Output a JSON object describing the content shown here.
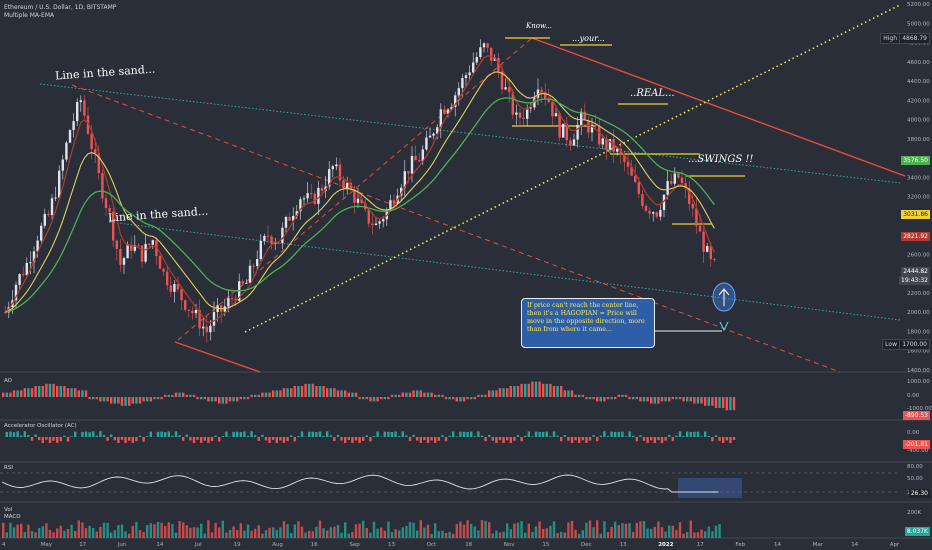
{
  "header": {
    "title": "Ethereum / U.S. Dollar, 1D, BITSTAMP",
    "indicator": "Multiple MA-EMA"
  },
  "annotations": {
    "line_sand_1": "Line in the sand...",
    "line_sand_2": "Line in the sand...",
    "know": "Know...",
    "your": "...your...",
    "real": "..REAL...",
    "swings": "...SWINGS !!",
    "callout": "If price can't reach the center line, then it's a HAGOPIAN = Price will move in the opposite direction, more than from where it came..."
  },
  "price_labels": {
    "high_tag": "High",
    "high": "4868.79",
    "low_tag": "Low",
    "low": "1700.00",
    "ma1": "3576.50",
    "ma2": "3031.86",
    "ma3": "2821.92",
    "last": "2444.82",
    "countdown": "19:43:32",
    "ao_val": "-890.53",
    "ac_val": "-201.81",
    "rsi_val": "26.30",
    "vol_val": "8.037K"
  },
  "panels": {
    "ao": "AO",
    "ac": "Accelerator Oscillator (AC)",
    "rsi": "RSI",
    "vol": "Vol",
    "macd": "MACD"
  },
  "colors": {
    "bg": "#2a2e39",
    "up": "#26a69a",
    "down": "#ef5350",
    "candle_up": "#e0e3eb",
    "ema_fast": "#b33a2f",
    "ema_mid": "#e0d05a",
    "ema_slow": "#4caf50",
    "trend_red": "#e84a3a",
    "dotted_yellow": "#e6e84a",
    "teal_dotted": "#2fb7b0",
    "level_yellow": "#f2d233"
  },
  "chart_data": {
    "type": "candlestick",
    "y_axis": {
      "min": 1400,
      "max": 5200,
      "ticks": [
        1400,
        1600,
        1800,
        2000,
        2200,
        2400,
        2600,
        2800,
        3000,
        3200,
        3400,
        3600,
        3800,
        4000,
        4200,
        4400,
        4600,
        4800,
        5000,
        5200
      ]
    },
    "x_axis": {
      "ticks": [
        "4",
        "May",
        "17",
        "Jun",
        "14",
        "Jul",
        "19",
        "Aug",
        "16",
        "Sep",
        "13",
        "Oct",
        "18",
        "Nov",
        "15",
        "Dec",
        "13",
        "2022",
        "17",
        "Feb",
        "14",
        "Mar",
        "14",
        "Apr"
      ]
    },
    "close_series": [
      [
        0,
        2000
      ],
      [
        3,
        2300
      ],
      [
        6,
        2500
      ],
      [
        9,
        2800
      ],
      [
        12,
        3000
      ],
      [
        15,
        3400
      ],
      [
        18,
        3900
      ],
      [
        21,
        4200
      ],
      [
        23,
        3900
      ],
      [
        26,
        3400
      ],
      [
        29,
        3000
      ],
      [
        32,
        2500
      ],
      [
        35,
        2700
      ],
      [
        38,
        2600
      ],
      [
        41,
        2750
      ],
      [
        44,
        2400
      ],
      [
        47,
        2250
      ],
      [
        50,
        2100
      ],
      [
        53,
        1950
      ],
      [
        56,
        1800
      ],
      [
        58,
        1950
      ],
      [
        61,
        2050
      ],
      [
        64,
        2200
      ],
      [
        67,
        2300
      ],
      [
        70,
        2600
      ],
      [
        73,
        2800
      ],
      [
        76,
        2750
      ],
      [
        79,
        3000
      ],
      [
        82,
        3200
      ],
      [
        85,
        3150
      ],
      [
        88,
        3300
      ],
      [
        91,
        3500
      ],
      [
        94,
        3350
      ],
      [
        97,
        3200
      ],
      [
        100,
        3000
      ],
      [
        103,
        2900
      ],
      [
        106,
        3050
      ],
      [
        109,
        3300
      ],
      [
        112,
        3500
      ],
      [
        115,
        3600
      ],
      [
        118,
        3800
      ],
      [
        121,
        4100
      ],
      [
        124,
        4200
      ],
      [
        127,
        4400
      ],
      [
        130,
        4600
      ],
      [
        133,
        4750
      ],
      [
        136,
        4600
      ],
      [
        139,
        4300
      ],
      [
        142,
        4000
      ],
      [
        145,
        4100
      ],
      [
        148,
        4400
      ],
      [
        151,
        4200
      ],
      [
        154,
        3900
      ],
      [
        157,
        3800
      ],
      [
        160,
        4000
      ],
      [
        163,
        3900
      ],
      [
        166,
        3750
      ],
      [
        169,
        3700
      ],
      [
        172,
        3550
      ],
      [
        175,
        3300
      ],
      [
        178,
        3100
      ],
      [
        181,
        3050
      ],
      [
        184,
        3300
      ],
      [
        187,
        3400
      ],
      [
        190,
        3150
      ],
      [
        193,
        2800
      ],
      [
        196,
        2500
      ],
      [
        198,
        2444
      ]
    ],
    "ao_values": [
      2,
      3,
      4,
      5,
      6,
      5,
      4,
      3,
      -1,
      -2,
      -3,
      -4,
      -3,
      -2,
      -1,
      1,
      2,
      1,
      -1,
      -2,
      -3,
      -2,
      -1,
      1,
      2,
      3,
      4,
      5,
      6,
      5,
      4,
      3,
      2,
      -1,
      -2,
      -1,
      1,
      2,
      3,
      2,
      1,
      -1,
      -2,
      -1,
      1,
      3,
      4,
      5,
      6,
      7,
      6,
      5,
      3,
      1,
      -1,
      -2,
      -1,
      1,
      -1,
      -2,
      -3,
      -2,
      -1,
      -2,
      -3,
      -4,
      -5,
      -6
    ]
  }
}
